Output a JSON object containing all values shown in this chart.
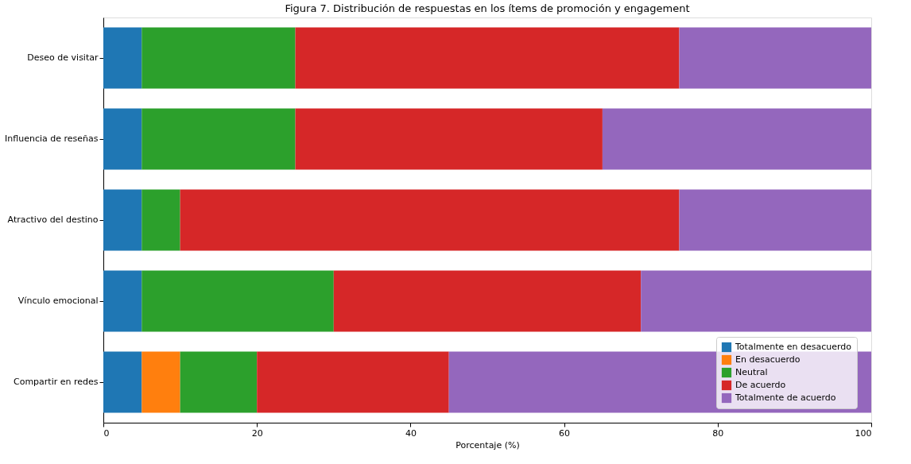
{
  "chart_data": {
    "type": "bar",
    "orientation": "horizontal",
    "stacked": true,
    "title": "Figura 7. Distribución de respuestas en los ítems de promoción y engagement",
    "xlabel": "Porcentaje (%)",
    "categories": [
      "Deseo de visitar",
      "Influencia de reseñas",
      "Atractivo del destino",
      "Vínculo emocional",
      "Compartir en redes"
    ],
    "series": [
      {
        "name": "Totalmente en desacuerdo",
        "color": "#1f77b4",
        "values": [
          5,
          5,
          5,
          5,
          5
        ]
      },
      {
        "name": "En desacuerdo",
        "color": "#ff7f0e",
        "values": [
          0,
          0,
          0,
          0,
          5
        ]
      },
      {
        "name": "Neutral",
        "color": "#2ca02c",
        "values": [
          20,
          20,
          5,
          25,
          10
        ]
      },
      {
        "name": "De acuerdo",
        "color": "#d62728",
        "values": [
          50,
          40,
          65,
          40,
          25
        ]
      },
      {
        "name": "Totalmente de acuerdo",
        "color": "#9467bd",
        "values": [
          25,
          35,
          25,
          30,
          55
        ]
      }
    ],
    "xlim": [
      0,
      100
    ],
    "xticks": [
      0,
      20,
      40,
      60,
      80,
      100
    ],
    "grid": false,
    "legend": "bottom right"
  }
}
